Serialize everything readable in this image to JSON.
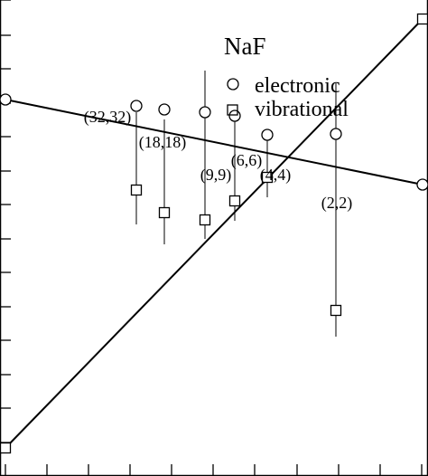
{
  "chart_data": {
    "type": "scatter",
    "title": "NaF",
    "xlabel": "",
    "ylabel": "",
    "legend_position": "top-right",
    "grid": false,
    "series": [
      {
        "name": "electronic",
        "marker": "circle",
        "points": [
          {
            "label": "(32,32)",
            "x": 151,
            "y": 409
          },
          {
            "label": "(18,18)",
            "x": 182,
            "y": 405
          },
          {
            "label": "(9,9)",
            "x": 227,
            "y": 402
          },
          {
            "label": "(6,6)",
            "x": 260,
            "y": 398
          },
          {
            "label": "(4,4)",
            "x": 296,
            "y": 377
          },
          {
            "label": "(2,2)",
            "x": 372,
            "y": 378
          }
        ]
      },
      {
        "name": "vibrational",
        "marker": "square",
        "points": [
          {
            "x": 151,
            "y": 316,
            "err_low": 278,
            "err_high": 402
          },
          {
            "x": 182,
            "y": 291,
            "err_low": 256,
            "err_high": 394
          },
          {
            "x": 227,
            "y": 283,
            "err_low": 262,
            "err_high": 448
          },
          {
            "x": 260,
            "y": 304,
            "err_low": 282,
            "err_high": 400
          },
          {
            "x": 296,
            "y": 330,
            "err_low": 308,
            "err_high": 377
          },
          {
            "x": 372,
            "y": 183,
            "err_low": 154,
            "err_high": 434
          }
        ]
      }
    ],
    "fit_lines": [
      {
        "series": "electronic",
        "from": {
          "x": 6,
          "y": 416
        },
        "to": {
          "x": 468,
          "y": 322
        }
      },
      {
        "series": "vibrational",
        "from": {
          "x": 6,
          "y": 31
        },
        "to": {
          "x": 468,
          "y": 505
        }
      }
    ],
    "endpoint_markers": [
      {
        "series": "electronic",
        "marker": "circle",
        "x": 6,
        "y": 416
      },
      {
        "series": "electronic",
        "marker": "circle",
        "x": 468,
        "y": 322
      },
      {
        "series": "vibrational",
        "marker": "square",
        "x": 6,
        "y": 31
      },
      {
        "series": "vibrational",
        "marker": "square",
        "x": 468,
        "y": 505
      }
    ],
    "x_ticks": [
      6,
      52,
      98,
      144,
      190,
      236,
      282,
      329,
      375,
      421,
      467
    ],
    "y_ticks": [
      0,
      37,
      75,
      112,
      150,
      187,
      225,
      262,
      300,
      337,
      375,
      412,
      450,
      487,
      526
    ],
    "xlim": [
      0,
      474
    ],
    "ylim": [
      526,
      0
    ]
  }
}
